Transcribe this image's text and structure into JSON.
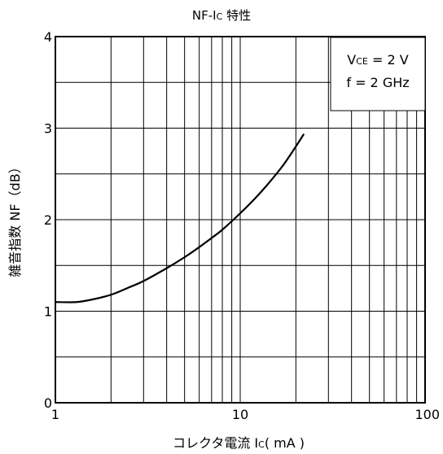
{
  "chart_data": {
    "type": "line",
    "title": "NF-Ic 特性",
    "title_main": "NF-I",
    "title_sub": "C",
    "title_tail": " 特性",
    "xlabel": "コレクタ電流 Ic( mA )",
    "xlabel_main": "コレクタ電流 I",
    "xlabel_sub": "C",
    "xlabel_tail": "( mA )",
    "ylabel": "雑音指数 NF（dB）",
    "x_scale": "log",
    "xlim": [
      1,
      100
    ],
    "ylim": [
      0,
      4
    ],
    "x_ticks": [
      1,
      10,
      100
    ],
    "x_tick_labels": [
      "1",
      "10",
      "100"
    ],
    "y_ticks": [
      0,
      1,
      2,
      3,
      4
    ],
    "y_tick_labels": [
      "0",
      "1",
      "2",
      "3",
      "4"
    ],
    "grid": true,
    "annotation": {
      "line1_main": "V",
      "line1_sub": "CE",
      "line1_tail": " = 2 V",
      "line2": "f = 2 GHz",
      "position": "top-right"
    },
    "series": [
      {
        "x": [
          1.0,
          1.3,
          1.6,
          2.0,
          2.5,
          3.0,
          4.0,
          5.0,
          6.0,
          7.0,
          8.0,
          10.0,
          12.0,
          14.0,
          17.0,
          20.0,
          22.0
        ],
        "y": [
          1.1,
          1.1,
          1.13,
          1.18,
          1.26,
          1.33,
          1.47,
          1.59,
          1.7,
          1.8,
          1.89,
          2.07,
          2.23,
          2.38,
          2.59,
          2.8,
          2.93
        ]
      }
    ]
  }
}
